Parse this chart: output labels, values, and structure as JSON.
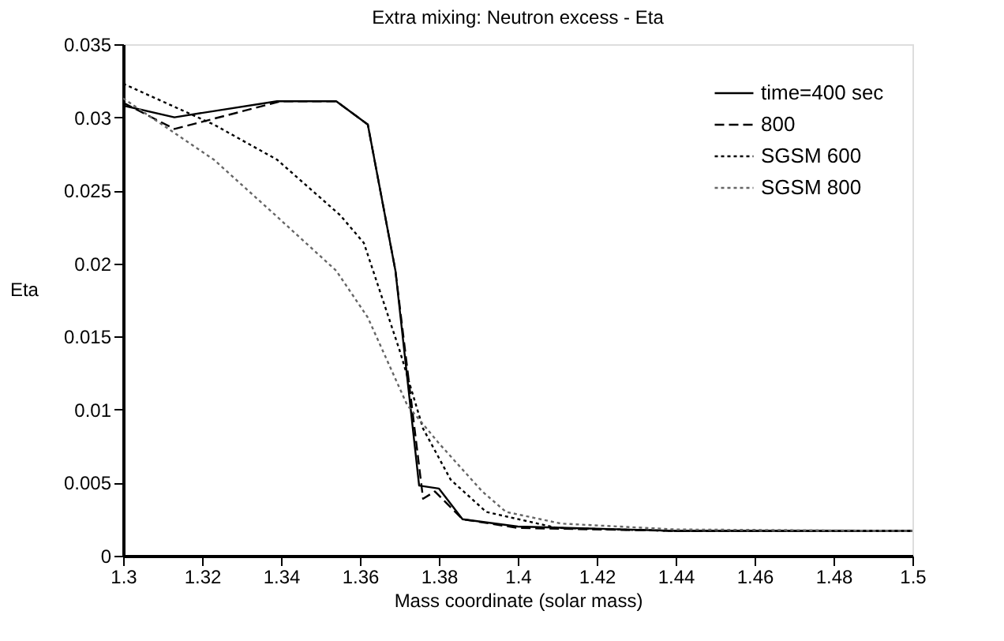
{
  "chart_data": {
    "type": "line",
    "title": "Extra mixing: Neutron excess - Eta",
    "xlabel": "Mass coordinate (solar mass)",
    "ylabel": "Eta",
    "xlim": [
      1.3,
      1.5
    ],
    "xticks": [
      1.3,
      1.32,
      1.34,
      1.36,
      1.38,
      1.4,
      1.42,
      1.44,
      1.46,
      1.48,
      1.5
    ],
    "ylim": [
      0,
      0.035
    ],
    "yticks": [
      0,
      0.005,
      0.01,
      0.015,
      0.02,
      0.025,
      0.03,
      0.035
    ],
    "grid": false,
    "legend": "top right",
    "marker": "none",
    "series": [
      {
        "name": "time=400 sec",
        "color": "#000000",
        "line_style": "solid",
        "x": [
          1.3,
          1.313,
          1.339,
          1.354,
          1.362,
          1.369,
          1.375,
          1.38,
          1.386,
          1.4,
          1.44,
          1.5
        ],
        "values": [
          0.0308,
          0.03,
          0.0311,
          0.0311,
          0.0295,
          0.0195,
          0.0048,
          0.0046,
          0.0025,
          0.002,
          0.0017,
          0.0017
        ]
      },
      {
        "name": "800",
        "color": "#000000",
        "line_style": "dashed",
        "x": [
          1.3,
          1.313,
          1.34,
          1.354,
          1.362,
          1.369,
          1.376,
          1.379,
          1.386,
          1.4,
          1.44,
          1.5
        ],
        "values": [
          0.031,
          0.0292,
          0.0311,
          0.0311,
          0.0295,
          0.0195,
          0.0039,
          0.0044,
          0.0025,
          0.0019,
          0.0017,
          0.0017
        ]
      },
      {
        "name": "SGSM 600",
        "color": "#000000",
        "line_style": "dotted",
        "x": [
          1.3,
          1.323,
          1.339,
          1.355,
          1.361,
          1.37,
          1.376,
          1.383,
          1.392,
          1.41,
          1.44,
          1.5
        ],
        "values": [
          0.0323,
          0.0295,
          0.0271,
          0.0233,
          0.0214,
          0.0141,
          0.0087,
          0.0052,
          0.003,
          0.0019,
          0.0017,
          0.0017
        ]
      },
      {
        "name": "SGSM 800",
        "color": "#666666",
        "line_style": "dotted",
        "x": [
          1.3,
          1.323,
          1.339,
          1.354,
          1.362,
          1.372,
          1.38,
          1.391,
          1.397,
          1.411,
          1.44,
          1.5
        ],
        "values": [
          0.0313,
          0.0271,
          0.0232,
          0.0195,
          0.0163,
          0.0103,
          0.0077,
          0.0044,
          0.003,
          0.0022,
          0.0018,
          0.0017
        ]
      }
    ]
  }
}
